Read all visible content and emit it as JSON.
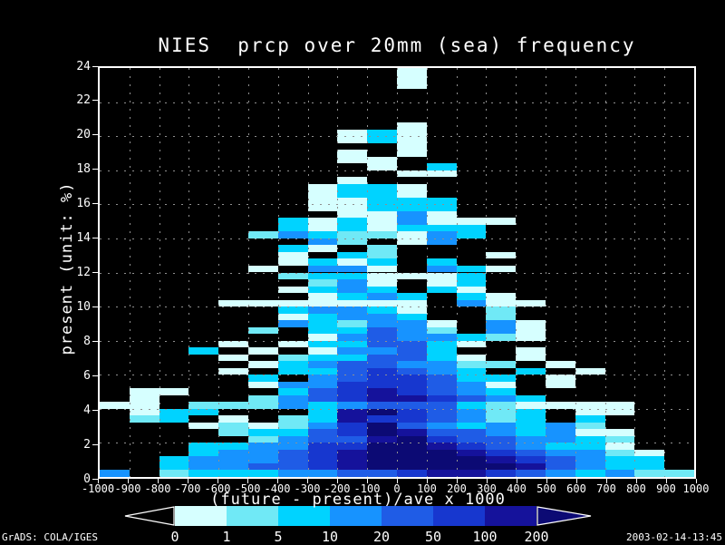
{
  "title": "NIES  prcp over 20mm (sea) frequency",
  "y_axis": {
    "label": "present (unit: %)",
    "min": 0,
    "max": 24,
    "ticks": [
      0,
      2,
      4,
      6,
      8,
      10,
      12,
      14,
      16,
      18,
      20,
      22,
      24
    ]
  },
  "x_axis": {
    "min": -1000,
    "max": 1000,
    "ticks": [
      -1000,
      -900,
      -800,
      -700,
      -600,
      -500,
      -400,
      -300,
      -200,
      -100,
      0,
      100,
      200,
      300,
      400,
      500,
      600,
      700,
      800,
      900,
      1000
    ]
  },
  "colorbar": {
    "title": "(future - present)/ave x 1000",
    "labels": [
      "0",
      "1",
      "5",
      "10",
      "20",
      "50",
      "100",
      "200"
    ],
    "below_range_color": "#000000",
    "segment_colors": [
      "#d6ffff",
      "#70e9f6",
      "#00d3ff",
      "#1793ff",
      "#1f5ce6",
      "#1737cf",
      "#15129b"
    ],
    "above_range_color": "#0c0a74",
    "arrow_outline": "#ffffff"
  },
  "footer": {
    "left": "GrADS: COLA/IGES",
    "right": "2003-02-14-13:45"
  },
  "chart_data": {
    "type": "heatmap",
    "title": "NIES  prcp over 20mm (sea) frequency",
    "xlabel": "(future - present)/ave x 1000 bins",
    "ylabel": "present (unit: %)",
    "x_range": [
      -1000,
      1000
    ],
    "y_range": [
      0,
      24
    ],
    "x_bin_size": 100,
    "y_bin_size": 0.4,
    "grid_on": true,
    "legend_position": "bottom",
    "level_values": {
      "0": "none",
      "1": "0-1",
      "2": "1-5",
      "3": "5-10",
      "4": "10-20",
      "5": "20-50",
      "6": "50-100",
      "7": "100-200",
      "8": ">200"
    },
    "palette": [
      "transparent",
      "#d6ffff",
      "#70e9f6",
      "#00d3ff",
      "#1793ff",
      "#1f5ce6",
      "#1737cf",
      "#15129b",
      "#0c0a74"
    ],
    "gridline_color": "#8f8f8f",
    "rows_top_to_bottom": [
      "00000000001000000000",
      "00000000001000000000",
      "00000000001000000000",
      "00000000000000000000",
      "00000000000000000000",
      "00000000000000000000",
      "00000000000000000000",
      "00000000000000000000",
      "00000000001000000000",
      "00000000131000000000",
      "00000000131000000000",
      "00000000001000000000",
      "00000000101000000000",
      "00000000110000000000",
      "00000000010300000000",
      "00000000001100000000",
      "00000000100000000000",
      "00000001331000000000",
      "00000001331000000000",
      "00000001133300000000",
      "00000001133300000000",
      "00000000114100000000",
      "00000031314111000000",
      "00000031313330000000",
      "00000243221430000000",
      "00000004201400000000",
      "00000031020000000000",
      "00000010320001000000",
      "00000013130300000000",
      "00000104410431000000",
      "00000023311130000000",
      "00000002410130000000",
      "00000013430310000000",
      "00000001343031000000",
      "00001111111041100000",
      "00000034431002000000",
      "00000013443002000000",
      "00000043244104100000",
      "00000203354204100000",
      "00000001454432100000",
      "00001013355310000000",
      "00030101445300100000",
      "00001023355310100000",
      "00000134554422010000",
      "00001033565430301000",
      "00000304566533010000",
      "00000144666541010000",
      "01100035676543000000",
      "01000245677654300000",
      "11022243455532111100",
      "01330003786542301100",
      "02301023766542303000",
      "00012124685434342000",
      "00002335687554341100",
      "00000245578655443200",
      "00033446688765433100",
      "00034456788876544210",
      "00344456788887654330",
      "00344556788888754330",
      "40233344556776543422"
    ]
  }
}
